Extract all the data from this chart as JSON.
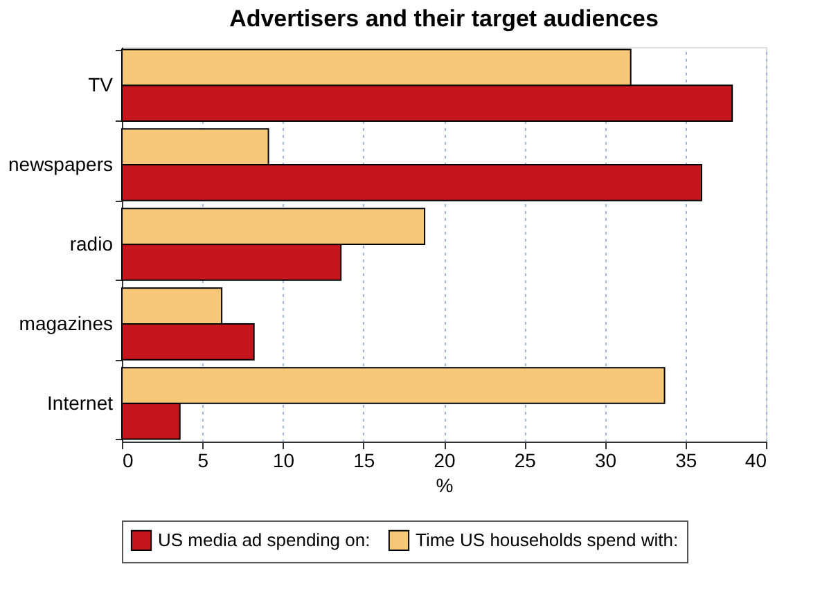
{
  "chart_data": {
    "type": "bar",
    "orientation": "horizontal",
    "title": "Advertisers and their target audiences",
    "xlabel": "%",
    "categories": [
      "TV",
      "newspapers",
      "radio",
      "magazines",
      "Internet"
    ],
    "series": [
      {
        "name": "US media ad spending on:",
        "color": "#c4161c",
        "values": [
          37.9,
          36.0,
          13.6,
          8.2,
          3.6
        ]
      },
      {
        "name": "Time US households spend with:",
        "color": "#f6c877",
        "values": [
          31.6,
          9.1,
          18.8,
          6.2,
          33.7
        ]
      }
    ],
    "xlim": [
      0,
      40
    ],
    "xticks": [
      0,
      5,
      10,
      15,
      20,
      25,
      30,
      35,
      40
    ],
    "grid": "x",
    "legend": "bottom"
  }
}
